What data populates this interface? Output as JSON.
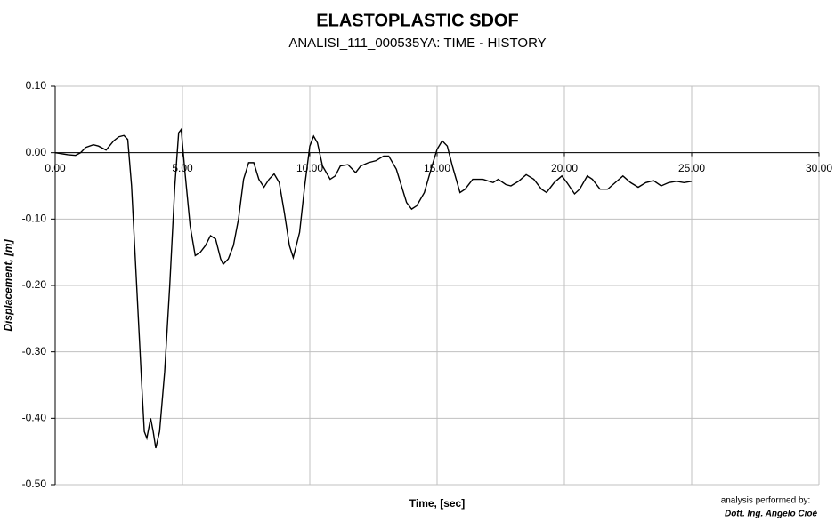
{
  "chart_data": {
    "type": "line",
    "title": "ELASTOPLASTIC SDOF",
    "subtitle": "ANALISI_111_000535YA: TIME - HISTORY",
    "x_label": "Time, [sec]",
    "y_label": "Displacement, [m]",
    "credit": [
      "analysis performed by:",
      "Dott. Ing. Angelo Cioè"
    ],
    "grid": true,
    "xlim": [
      0,
      30
    ],
    "ylim": [
      -0.5,
      0.1
    ],
    "xticks": [
      {
        "value": 0,
        "label": "0.00"
      },
      {
        "value": 5,
        "label": "5.00"
      },
      {
        "value": 10,
        "label": "10.00"
      },
      {
        "value": 15,
        "label": "15.00"
      },
      {
        "value": 20,
        "label": "20.00"
      },
      {
        "value": 25,
        "label": "25.00"
      },
      {
        "value": 30,
        "label": "30.00"
      }
    ],
    "yticks": [
      {
        "value": 0.1,
        "label": "0.10"
      },
      {
        "value": 0,
        "label": "0.00"
      },
      {
        "value": -0.1,
        "label": "-0.10"
      },
      {
        "value": -0.2,
        "label": "-0.20"
      },
      {
        "value": -0.3,
        "label": "-0.30"
      },
      {
        "value": -0.4,
        "label": "-0.40"
      },
      {
        "value": -0.5,
        "label": "-0.50"
      }
    ],
    "x": [
      0,
      0.5,
      0.8,
      1.0,
      1.2,
      1.5,
      1.7,
      2.0,
      2.3,
      2.5,
      2.7,
      2.85,
      3.0,
      3.2,
      3.4,
      3.5,
      3.6,
      3.7,
      3.75,
      3.85,
      3.95,
      4.1,
      4.3,
      4.5,
      4.7,
      4.85,
      4.95,
      5.1,
      5.3,
      5.5,
      5.7,
      5.9,
      6.1,
      6.3,
      6.5,
      6.6,
      6.8,
      7.0,
      7.2,
      7.4,
      7.6,
      7.8,
      8.0,
      8.2,
      8.4,
      8.6,
      8.8,
      9.0,
      9.2,
      9.35,
      9.6,
      9.8,
      10.0,
      10.15,
      10.3,
      10.5,
      10.8,
      11.0,
      11.2,
      11.5,
      11.8,
      12.0,
      12.3,
      12.6,
      12.9,
      13.1,
      13.4,
      13.6,
      13.8,
      14.0,
      14.2,
      14.5,
      14.8,
      15.0,
      15.2,
      15.4,
      15.6,
      15.9,
      16.1,
      16.4,
      16.8,
      17.2,
      17.4,
      17.7,
      17.9,
      18.2,
      18.5,
      18.8,
      19.1,
      19.3,
      19.6,
      19.9,
      20.1,
      20.4,
      20.6,
      20.9,
      21.1,
      21.4,
      21.7,
      22.0,
      22.3,
      22.6,
      22.9,
      23.2,
      23.5,
      23.8,
      24.1,
      24.4,
      24.7,
      25.0
    ],
    "series": [
      {
        "name": "Displacement",
        "color": "#000000",
        "values": [
          0,
          -0.003,
          -0.004,
          0.0,
          0.008,
          0.012,
          0.01,
          0.004,
          0.018,
          0.024,
          0.026,
          0.02,
          -0.05,
          -0.2,
          -0.35,
          -0.42,
          -0.43,
          -0.41,
          -0.4,
          -0.42,
          -0.445,
          -0.42,
          -0.33,
          -0.2,
          -0.05,
          0.03,
          0.035,
          -0.03,
          -0.11,
          -0.155,
          -0.15,
          -0.14,
          -0.125,
          -0.13,
          -0.16,
          -0.168,
          -0.16,
          -0.14,
          -0.1,
          -0.04,
          -0.015,
          -0.015,
          -0.04,
          -0.052,
          -0.04,
          -0.032,
          -0.045,
          -0.09,
          -0.14,
          -0.158,
          -0.12,
          -0.05,
          0.01,
          0.025,
          0.015,
          -0.02,
          -0.04,
          -0.035,
          -0.02,
          -0.018,
          -0.03,
          -0.02,
          -0.015,
          -0.012,
          -0.005,
          -0.005,
          -0.025,
          -0.05,
          -0.075,
          -0.085,
          -0.08,
          -0.06,
          -0.02,
          0.005,
          0.018,
          0.01,
          -0.02,
          -0.06,
          -0.055,
          -0.04,
          -0.04,
          -0.045,
          -0.04,
          -0.048,
          -0.05,
          -0.043,
          -0.033,
          -0.04,
          -0.055,
          -0.06,
          -0.045,
          -0.035,
          -0.045,
          -0.062,
          -0.055,
          -0.035,
          -0.04,
          -0.055,
          -0.055,
          -0.045,
          -0.035,
          -0.045,
          -0.052,
          -0.045,
          -0.042,
          -0.05,
          -0.045,
          -0.043,
          -0.045,
          -0.043
        ]
      }
    ]
  }
}
